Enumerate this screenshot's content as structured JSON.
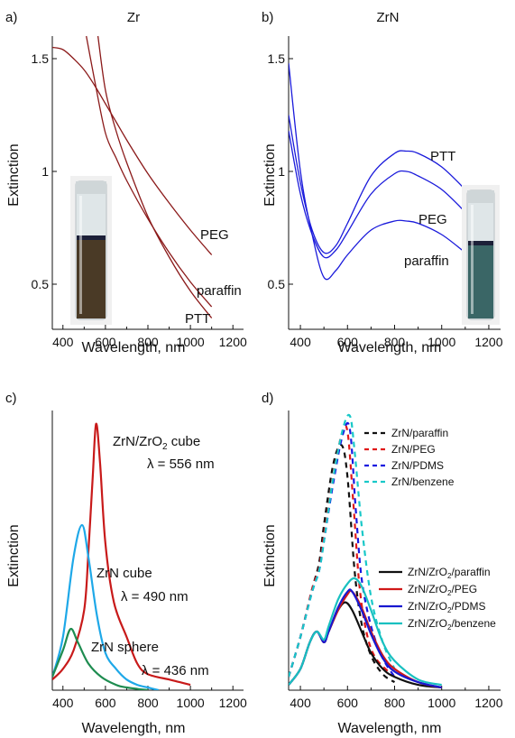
{
  "chart_data": [
    {
      "panel": "a)",
      "title": "Zr",
      "type": "line",
      "xlabel": "Wavelength, nm",
      "ylabel": "Extinction",
      "xlim": [
        350,
        1250
      ],
      "ylim": [
        0.3,
        1.6
      ],
      "xticks": [
        400,
        600,
        800,
        1000,
        1200
      ],
      "xtick_labels": [
        "400",
        "600",
        "800",
        "1000",
        "1200"
      ],
      "yticks": [
        0.5,
        1.0,
        1.5
      ],
      "ytick_labels": [
        "0.5",
        "1",
        "1.5"
      ],
      "color": "#8b1a1a",
      "series": [
        {
          "name": "PEG",
          "x": [
            350,
            400,
            450,
            500,
            550,
            600,
            650,
            700,
            800,
            900,
            1000,
            1100
          ],
          "y": [
            1.55,
            1.54,
            1.5,
            1.45,
            1.38,
            1.3,
            1.22,
            1.14,
            0.99,
            0.86,
            0.74,
            0.63
          ]
        },
        {
          "name": "paraffin",
          "x": [
            510,
            550,
            600,
            650,
            700,
            800,
            900,
            1000,
            1100
          ],
          "y": [
            1.6,
            1.4,
            1.17,
            1.06,
            0.96,
            0.79,
            0.64,
            0.51,
            0.4
          ]
        },
        {
          "name": "PTT",
          "x": [
            565,
            600,
            650,
            700,
            800,
            900,
            1000,
            1100
          ],
          "y": [
            1.6,
            1.36,
            1.18,
            1.04,
            0.8,
            0.62,
            0.47,
            0.35
          ]
        }
      ]
    },
    {
      "panel": "b)",
      "title": "ZrN",
      "type": "line",
      "xlabel": "Wavelength, nm",
      "ylabel": "Extinction",
      "xlim": [
        350,
        1250
      ],
      "ylim": [
        0.3,
        1.6
      ],
      "xticks": [
        400,
        600,
        800,
        1000,
        1200
      ],
      "xtick_labels": [
        "400",
        "600",
        "800",
        "1000",
        "1200"
      ],
      "yticks": [
        0.5,
        1.0,
        1.5
      ],
      "ytick_labels": [
        "0.5",
        "1",
        "1.5"
      ],
      "color": "#1a1adb",
      "series": [
        {
          "name": "PTT",
          "x": [
            350,
            400,
            450,
            500,
            550,
            600,
            700,
            800,
            850,
            900,
            1000,
            1100
          ],
          "y": [
            1.25,
            0.95,
            0.74,
            0.64,
            0.67,
            0.77,
            0.98,
            1.08,
            1.09,
            1.08,
            1.02,
            0.92
          ]
        },
        {
          "name": "PEG",
          "x": [
            350,
            400,
            450,
            500,
            550,
            600,
            700,
            800,
            850,
            900,
            1000,
            1100
          ],
          "y": [
            1.18,
            0.9,
            0.72,
            0.62,
            0.65,
            0.73,
            0.9,
            0.99,
            1.0,
            0.98,
            0.92,
            0.82
          ]
        },
        {
          "name": "paraffin",
          "x": [
            350,
            400,
            450,
            500,
            550,
            600,
            700,
            800,
            850,
            900,
            1000,
            1100
          ],
          "y": [
            1.48,
            1.0,
            0.72,
            0.53,
            0.56,
            0.63,
            0.74,
            0.78,
            0.78,
            0.77,
            0.72,
            0.64
          ]
        }
      ]
    },
    {
      "panel": "c)",
      "title": "",
      "type": "line",
      "xlabel": "Wavelength, nm",
      "ylabel": "Extinction",
      "xlim": [
        350,
        1250
      ],
      "ylim": [
        0,
        1.05
      ],
      "xticks": [
        400,
        600,
        800,
        1000,
        1200
      ],
      "xtick_labels": [
        "400",
        "600",
        "800",
        "1000",
        "1200"
      ],
      "series": [
        {
          "name": "ZrN/ZrO2 cube",
          "color": "#c81a1a",
          "x": [
            350,
            400,
            450,
            500,
            520,
            540,
            556,
            575,
            600,
            640,
            700,
            750,
            800,
            900,
            950,
            1000
          ],
          "y": [
            0.04,
            0.08,
            0.15,
            0.3,
            0.52,
            0.8,
            1.0,
            0.85,
            0.55,
            0.33,
            0.2,
            0.1,
            0.06,
            0.04,
            0.03,
            0.02
          ]
        },
        {
          "name": "ZrN cube",
          "color": "#1ea8e8",
          "x": [
            350,
            400,
            450,
            490,
            520,
            560,
            600,
            650,
            700,
            750,
            800,
            850
          ],
          "y": [
            0.05,
            0.2,
            0.5,
            0.62,
            0.5,
            0.28,
            0.14,
            0.08,
            0.04,
            0.02,
            0.01,
            0.0
          ]
        },
        {
          "name": "ZrN sphere",
          "color": "#1e8c50",
          "x": [
            350,
            400,
            436,
            470,
            520,
            580,
            650,
            700,
            800
          ],
          "y": [
            0.05,
            0.15,
            0.23,
            0.18,
            0.1,
            0.05,
            0.02,
            0.01,
            0.0
          ]
        }
      ],
      "annotations": [
        {
          "line1": "ZrN/ZrO",
          "sub": "2",
          "line1_tail": " cube",
          "line2": "λ = 556 nm"
        },
        {
          "line1": "ZrN cube",
          "line2": "λ = 490 nm"
        },
        {
          "line1": "ZrN sphere",
          "line2": "λ = 436 nm"
        }
      ]
    },
    {
      "panel": "d)",
      "title": "",
      "type": "line",
      "xlabel": "Wavelength, nm",
      "ylabel": "Extinction",
      "xlim": [
        350,
        1250
      ],
      "ylim": [
        0,
        1.05
      ],
      "xticks": [
        400,
        600,
        800,
        1000,
        1200
      ],
      "xtick_labels": [
        "400",
        "600",
        "800",
        "1000",
        "1200"
      ],
      "series": [
        {
          "name": "ZrN/paraffin",
          "color": "#111111",
          "dash": true,
          "x": [
            350,
            400,
            450,
            480,
            500,
            540,
            575,
            600,
            630,
            660,
            700,
            750,
            800
          ],
          "y": [
            0.05,
            0.2,
            0.38,
            0.48,
            0.62,
            0.85,
            0.92,
            0.8,
            0.45,
            0.25,
            0.13,
            0.06,
            0.03
          ]
        },
        {
          "name": "ZrN/PEG",
          "color": "#e01818",
          "dash": true,
          "x": [
            350,
            400,
            450,
            480,
            500,
            540,
            575,
            600,
            625,
            650,
            680,
            720,
            800
          ],
          "y": [
            0.05,
            0.2,
            0.38,
            0.46,
            0.58,
            0.8,
            0.96,
            0.97,
            0.7,
            0.4,
            0.22,
            0.12,
            0.05
          ]
        },
        {
          "name": "ZrN/PDMS",
          "color": "#1818e0",
          "dash": true,
          "x": [
            350,
            400,
            450,
            480,
            500,
            540,
            580,
            610,
            635,
            660,
            700,
            750,
            800
          ],
          "y": [
            0.05,
            0.2,
            0.37,
            0.45,
            0.56,
            0.78,
            0.96,
            0.98,
            0.68,
            0.42,
            0.24,
            0.12,
            0.05
          ]
        },
        {
          "name": "ZrN/benzene",
          "color": "#18c8c8",
          "dash": true,
          "x": [
            350,
            400,
            450,
            480,
            500,
            540,
            580,
            610,
            630,
            660,
            700,
            750,
            800
          ],
          "y": [
            0.05,
            0.2,
            0.37,
            0.45,
            0.56,
            0.8,
            0.98,
            1.03,
            0.9,
            0.62,
            0.35,
            0.18,
            0.08
          ]
        },
        {
          "name": "ZrN/ZrO2/paraffin",
          "color": "#111111",
          "dash": false,
          "x": [
            350,
            400,
            440,
            470,
            500,
            520,
            560,
            590,
            620,
            660,
            700,
            750,
            800,
            900,
            1000
          ],
          "y": [
            0.02,
            0.08,
            0.18,
            0.22,
            0.18,
            0.22,
            0.3,
            0.33,
            0.3,
            0.22,
            0.14,
            0.08,
            0.05,
            0.02,
            0.01
          ]
        },
        {
          "name": "ZrN/ZrO2/PEG",
          "color": "#d01818",
          "dash": false,
          "x": [
            350,
            400,
            440,
            470,
            500,
            520,
            560,
            600,
            620,
            660,
            700,
            750,
            800,
            900,
            1000
          ],
          "y": [
            0.02,
            0.08,
            0.18,
            0.22,
            0.18,
            0.22,
            0.3,
            0.36,
            0.37,
            0.31,
            0.22,
            0.13,
            0.08,
            0.03,
            0.01
          ]
        },
        {
          "name": "ZrN/ZrO2/PDMS",
          "color": "#1818d0",
          "dash": false,
          "x": [
            350,
            400,
            440,
            470,
            500,
            520,
            560,
            600,
            620,
            660,
            700,
            750,
            800,
            900,
            1000
          ],
          "y": [
            0.02,
            0.08,
            0.18,
            0.22,
            0.18,
            0.22,
            0.31,
            0.37,
            0.37,
            0.3,
            0.21,
            0.12,
            0.07,
            0.03,
            0.01
          ]
        },
        {
          "name": "ZrN/ZrO2/benzene",
          "color": "#18c0c0",
          "dash": false,
          "x": [
            350,
            400,
            440,
            470,
            500,
            520,
            560,
            600,
            630,
            660,
            700,
            750,
            800,
            900,
            1000
          ],
          "y": [
            0.02,
            0.08,
            0.18,
            0.22,
            0.19,
            0.24,
            0.34,
            0.4,
            0.42,
            0.39,
            0.3,
            0.18,
            0.11,
            0.04,
            0.02
          ]
        }
      ],
      "legend_dashed": [
        {
          "text": "ZrN/paraffin",
          "color": "#111111"
        },
        {
          "text": "ZrN/PEG",
          "color": "#e01818"
        },
        {
          "text": "ZrN/PDMS",
          "color": "#1818e0"
        },
        {
          "text": "ZrN/benzene",
          "color": "#18c8c8"
        }
      ],
      "legend_solid": [
        {
          "pre": "ZrN/ZrO",
          "sub": "2",
          "post": "/paraffin",
          "color": "#111111"
        },
        {
          "pre": "ZrN/ZrO",
          "sub": "2",
          "post": "/PEG",
          "color": "#d01818"
        },
        {
          "pre": "ZrN/ZrO",
          "sub": "2",
          "post": "/PDMS",
          "color": "#1818d0"
        },
        {
          "pre": "ZrN/ZrO",
          "sub": "2",
          "post": "/benzene",
          "color": "#18c0c0"
        }
      ]
    }
  ],
  "colors": {
    "vial_a_liquid": "#4a3a26",
    "vial_b_liquid": "#3a6666",
    "glass": "#dfe6e8"
  }
}
